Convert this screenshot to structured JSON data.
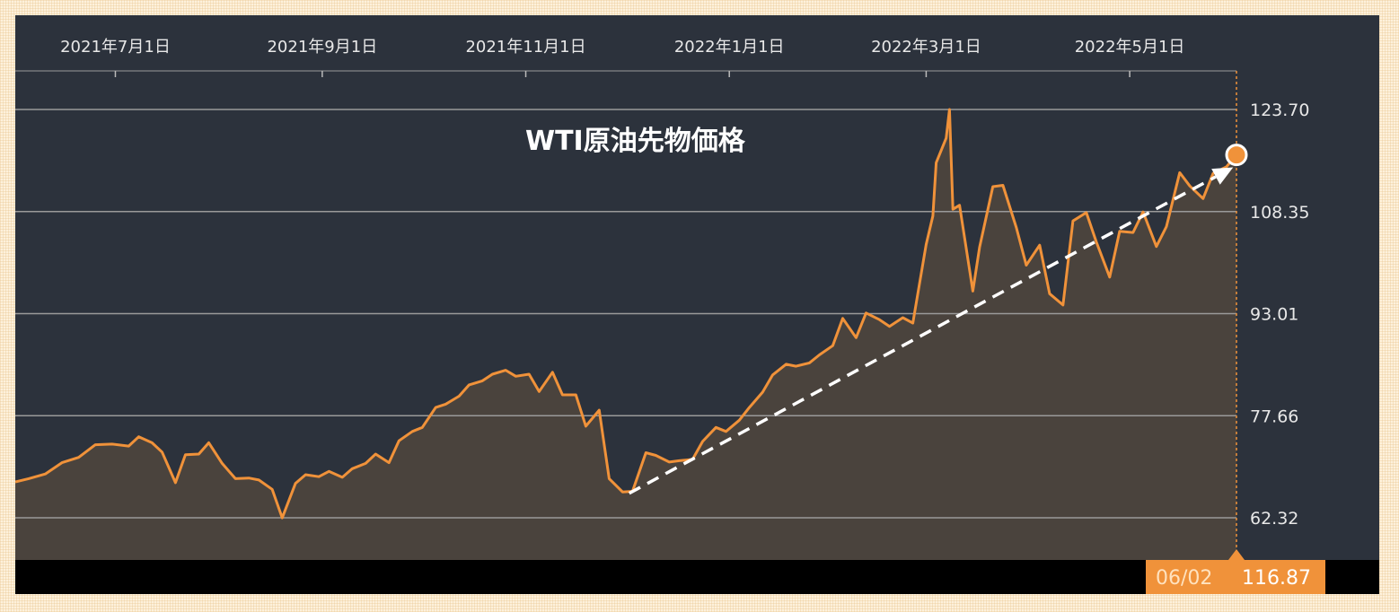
{
  "colors": {
    "plot_background": "#2c323c",
    "area_fill": "#4a433d",
    "line": "#f0923a",
    "gridline": "#9a9a9a",
    "trend_arrow": "#ffffff",
    "bottom_bar": "#000000",
    "readout_background": "#f0923a"
  },
  "chart_data": {
    "type": "area",
    "title": "WTI原油先物価格",
    "x_tick_labels": [
      "2021年7月1日",
      "2021年9月1日",
      "2021年11月1日",
      "2022年1月1日",
      "2022年3月1日",
      "2022年5月1日"
    ],
    "x_tick_dates": [
      "2021-07-01",
      "2021-09-01",
      "2021-11-01",
      "2022-01-01",
      "2022-03-01",
      "2022-05-01"
    ],
    "y_tick_labels": [
      "123.70",
      "108.35",
      "93.01",
      "77.66",
      "62.32"
    ],
    "y_ticks": [
      123.7,
      108.35,
      93.01,
      77.66,
      62.32
    ],
    "ylim": [
      55.6,
      130.0
    ],
    "xlim": [
      "2021-06-01",
      "2022-06-02"
    ],
    "grid": "horizontal",
    "legend": "none",
    "series": [
      {
        "values": [
          [
            "2021-06-01",
            67.7
          ],
          [
            "2021-06-05",
            68.2
          ],
          [
            "2021-06-10",
            68.9
          ],
          [
            "2021-06-15",
            70.6
          ],
          [
            "2021-06-20",
            71.4
          ],
          [
            "2021-06-25",
            73.3
          ],
          [
            "2021-06-30",
            73.4
          ],
          [
            "2021-07-05",
            73.1
          ],
          [
            "2021-07-08",
            74.5
          ],
          [
            "2021-07-12",
            73.6
          ],
          [
            "2021-07-15",
            72.2
          ],
          [
            "2021-07-19",
            67.6
          ],
          [
            "2021-07-22",
            71.8
          ],
          [
            "2021-07-26",
            71.9
          ],
          [
            "2021-07-29",
            73.6
          ],
          [
            "2021-08-02",
            70.5
          ],
          [
            "2021-08-06",
            68.2
          ],
          [
            "2021-08-10",
            68.3
          ],
          [
            "2021-08-13",
            68.0
          ],
          [
            "2021-08-17",
            66.6
          ],
          [
            "2021-08-20",
            62.3
          ],
          [
            "2021-08-24",
            67.5
          ],
          [
            "2021-08-27",
            68.8
          ],
          [
            "2021-08-31",
            68.5
          ],
          [
            "2021-09-03",
            69.3
          ],
          [
            "2021-09-07",
            68.4
          ],
          [
            "2021-09-10",
            69.7
          ],
          [
            "2021-09-14",
            70.5
          ],
          [
            "2021-09-17",
            71.9
          ],
          [
            "2021-09-21",
            70.6
          ],
          [
            "2021-09-24",
            73.9
          ],
          [
            "2021-09-28",
            75.3
          ],
          [
            "2021-10-01",
            75.9
          ],
          [
            "2021-10-05",
            78.9
          ],
          [
            "2021-10-08",
            79.4
          ],
          [
            "2021-10-12",
            80.6
          ],
          [
            "2021-10-15",
            82.3
          ],
          [
            "2021-10-19",
            82.9
          ],
          [
            "2021-10-22",
            83.9
          ],
          [
            "2021-10-26",
            84.5
          ],
          [
            "2021-10-29",
            83.6
          ],
          [
            "2021-11-02",
            83.9
          ],
          [
            "2021-11-05",
            81.3
          ],
          [
            "2021-11-09",
            84.2
          ],
          [
            "2021-11-12",
            80.8
          ],
          [
            "2021-11-16",
            80.8
          ],
          [
            "2021-11-19",
            76.1
          ],
          [
            "2021-11-23",
            78.5
          ],
          [
            "2021-11-26",
            68.2
          ],
          [
            "2021-11-30",
            66.2
          ],
          [
            "2021-12-03",
            66.3
          ],
          [
            "2021-12-07",
            72.1
          ],
          [
            "2021-12-10",
            71.7
          ],
          [
            "2021-12-14",
            70.7
          ],
          [
            "2021-12-17",
            70.9
          ],
          [
            "2021-12-21",
            71.1
          ],
          [
            "2021-12-24",
            73.8
          ],
          [
            "2021-12-28",
            75.9
          ],
          [
            "2021-12-31",
            75.3
          ],
          [
            "2022-01-04",
            76.99
          ],
          [
            "2022-01-07",
            78.9
          ],
          [
            "2022-01-11",
            81.2
          ],
          [
            "2022-01-14",
            83.8
          ],
          [
            "2022-01-18",
            85.4
          ],
          [
            "2022-01-21",
            85.1
          ],
          [
            "2022-01-25",
            85.6
          ],
          [
            "2022-01-28",
            86.8
          ],
          [
            "2022-02-01",
            88.2
          ],
          [
            "2022-02-04",
            92.3
          ],
          [
            "2022-02-08",
            89.4
          ],
          [
            "2022-02-11",
            93.1
          ],
          [
            "2022-02-15",
            92.1
          ],
          [
            "2022-02-18",
            91.1
          ],
          [
            "2022-02-22",
            92.4
          ],
          [
            "2022-02-25",
            91.6
          ],
          [
            "2022-03-01",
            103.4
          ],
          [
            "2022-03-03",
            107.7
          ],
          [
            "2022-03-04",
            115.7
          ],
          [
            "2022-03-07",
            119.4
          ],
          [
            "2022-03-08",
            123.7
          ],
          [
            "2022-03-09",
            108.7
          ],
          [
            "2022-03-11",
            109.3
          ],
          [
            "2022-03-15",
            96.4
          ],
          [
            "2022-03-17",
            102.98
          ],
          [
            "2022-03-21",
            112.1
          ],
          [
            "2022-03-24",
            112.3
          ],
          [
            "2022-03-28",
            105.96
          ],
          [
            "2022-03-31",
            100.3
          ],
          [
            "2022-04-04",
            103.3
          ],
          [
            "2022-04-07",
            96.0
          ],
          [
            "2022-04-11",
            94.3
          ],
          [
            "2022-04-14",
            106.95
          ],
          [
            "2022-04-18",
            108.2
          ],
          [
            "2022-04-21",
            103.8
          ],
          [
            "2022-04-25",
            98.5
          ],
          [
            "2022-04-28",
            105.4
          ],
          [
            "2022-05-02",
            105.2
          ],
          [
            "2022-05-05",
            108.3
          ],
          [
            "2022-05-09",
            103.1
          ],
          [
            "2022-05-12",
            106.1
          ],
          [
            "2022-05-16",
            114.2
          ],
          [
            "2022-05-19",
            112.2
          ],
          [
            "2022-05-23",
            110.3
          ],
          [
            "2022-05-26",
            114.1
          ],
          [
            "2022-05-30",
            115.1
          ],
          [
            "2022-06-02",
            116.87
          ]
        ]
      }
    ],
    "trend_arrow": {
      "from": [
        "2021-12-02",
        66.0
      ],
      "to": [
        "2022-06-01",
        115.0
      ]
    },
    "current_readout": {
      "date": "06/02",
      "value": "116.87"
    }
  }
}
